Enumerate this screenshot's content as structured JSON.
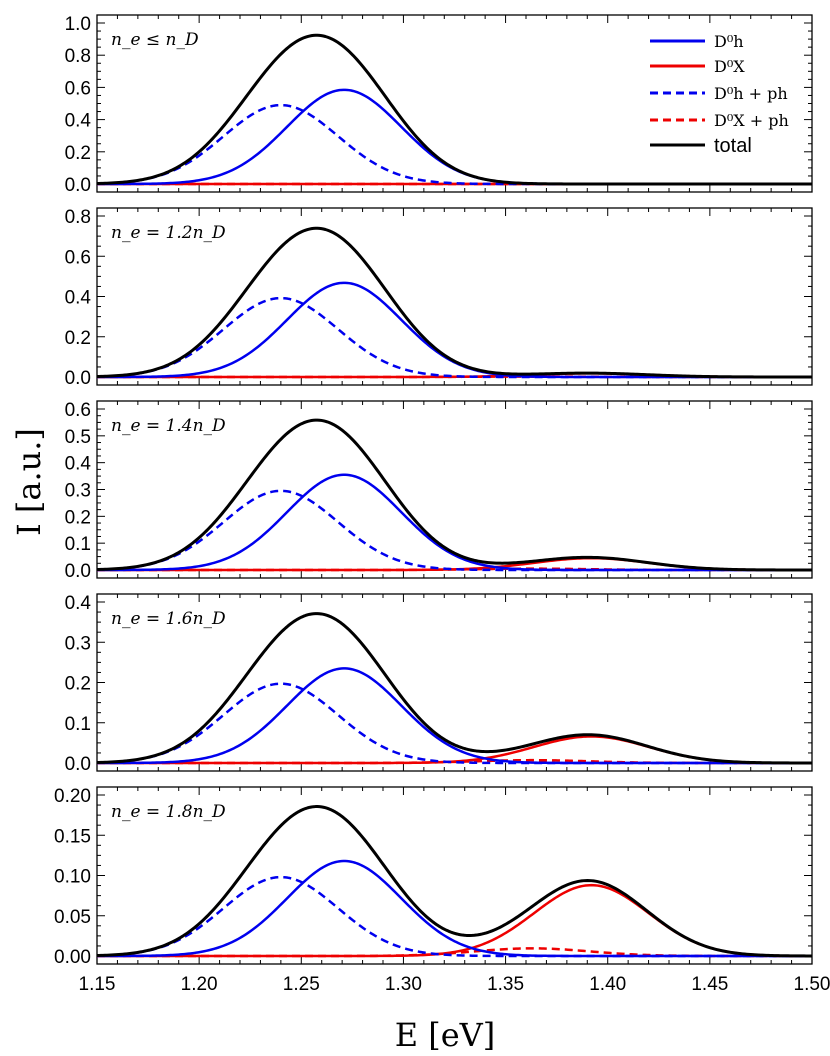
{
  "chart_data": {
    "type": "line",
    "xlabel": "E [eV]",
    "ylabel": "I [a.u.]",
    "xlim": [
      1.15,
      1.5
    ],
    "xticks": [
      "1.15",
      "1.20",
      "1.25",
      "1.30",
      "1.35",
      "1.40",
      "1.45",
      "1.50"
    ],
    "legend": {
      "position": "top-right of first panel",
      "entries": [
        {
          "label": "D⁰h",
          "color": "#0000ee",
          "dash": "solid"
        },
        {
          "label": "D⁰X",
          "color": "#ee0000",
          "dash": "solid"
        },
        {
          "label": "D⁰h + ph",
          "color": "#0000ee",
          "dash": "dashed"
        },
        {
          "label": "D⁰X + ph",
          "color": "#ee0000",
          "dash": "dashed"
        },
        {
          "label": "total",
          "color": "#000000",
          "dash": "solid"
        }
      ]
    },
    "model": {
      "sigma": 0.028,
      "D0h_center": 1.271,
      "D0h_ph_center": 1.24,
      "D0X_center": 1.392,
      "D0X_ph_center": 1.363
    },
    "panels": [
      {
        "label": "n_e ≤ n_D",
        "ylim": [
          0,
          1.0
        ],
        "yticks": [
          "0.0",
          "0.2",
          "0.4",
          "0.6",
          "0.8",
          "1.0"
        ],
        "series": {
          "D0h_peak": 0.585,
          "D0h_ph_peak": 0.49,
          "D0X_peak": 0.0,
          "D0X_ph_peak": 0.0
        }
      },
      {
        "label": "n_e = 1.2n_D",
        "ylim": [
          0,
          0.8
        ],
        "yticks": [
          "0.0",
          "0.2",
          "0.4",
          "0.6",
          "0.8"
        ],
        "series": {
          "D0h_peak": 0.468,
          "D0h_ph_peak": 0.392,
          "D0X_peak": 0.018,
          "D0X_ph_peak": 0.002
        }
      },
      {
        "label": "n_e = 1.4n_D",
        "ylim": [
          0,
          0.6
        ],
        "yticks": [
          "0.0",
          "0.1",
          "0.2",
          "0.3",
          "0.4",
          "0.5",
          "0.6"
        ],
        "series": {
          "D0h_peak": 0.355,
          "D0h_ph_peak": 0.295,
          "D0X_peak": 0.044,
          "D0X_ph_peak": 0.005
        }
      },
      {
        "label": "n_e = 1.6n_D",
        "ylim": [
          0,
          0.4
        ],
        "yticks": [
          "0.0",
          "0.1",
          "0.2",
          "0.3",
          "0.4"
        ],
        "series": {
          "D0h_peak": 0.235,
          "D0h_ph_peak": 0.197,
          "D0X_peak": 0.066,
          "D0X_ph_peak": 0.007
        }
      },
      {
        "label": "n_e = 1.8n_D",
        "ylim": [
          0,
          0.2
        ],
        "yticks": [
          "0.00",
          "0.05",
          "0.10",
          "0.15",
          "0.20"
        ],
        "series": {
          "D0h_peak": 0.118,
          "D0h_ph_peak": 0.098,
          "D0X_peak": 0.088,
          "D0X_ph_peak": 0.0095
        }
      }
    ]
  }
}
